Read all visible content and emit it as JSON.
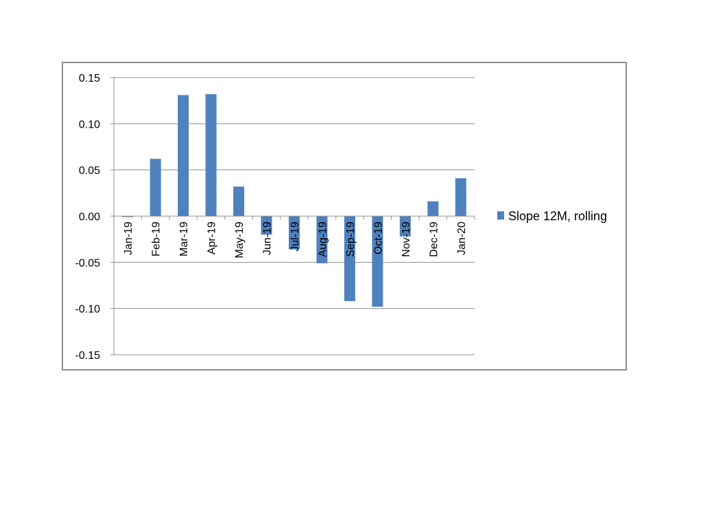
{
  "chart_data": {
    "type": "bar",
    "categories": [
      "Jan-19",
      "Feb-19",
      "Mar-19",
      "Apr-19",
      "May-19",
      "Jun-19",
      "Jul-19",
      "Aug-19",
      "Sep-19",
      "Oct-19",
      "Nov-19",
      "Dec-19",
      "Jan-20"
    ],
    "series": [
      {
        "name": "Slope 12M, rolling",
        "color": "#4f81bd",
        "values": [
          -0.001,
          0.062,
          0.131,
          0.132,
          0.032,
          -0.02,
          -0.036,
          -0.051,
          -0.092,
          -0.098,
          -0.022,
          0.016,
          0.041
        ]
      }
    ],
    "ylim": [
      -0.15,
      0.15
    ],
    "yticks": [
      "-0.15",
      "-0.10",
      "-0.05",
      "0.00",
      "0.05",
      "0.10",
      "0.15"
    ],
    "ytick_values": [
      -0.15,
      -0.1,
      -0.05,
      0.0,
      0.05,
      0.1,
      0.15
    ],
    "grid": true,
    "legend_position": "right",
    "title": "",
    "xlabel": "",
    "ylabel": ""
  }
}
